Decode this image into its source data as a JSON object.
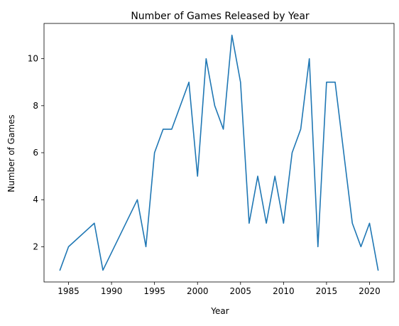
{
  "chart_data": {
    "type": "line",
    "title": "Number of Games Released by Year",
    "xlabel": "Year",
    "ylabel": "Number of Games",
    "x": [
      1984,
      1985,
      1988,
      1989,
      1993,
      1994,
      1995,
      1996,
      1997,
      1999,
      2000,
      2001,
      2002,
      2003,
      2004,
      2005,
      2006,
      2007,
      2008,
      2009,
      2010,
      2011,
      2012,
      2013,
      2014,
      2015,
      2016,
      2018,
      2019,
      2020,
      2021
    ],
    "series": [
      {
        "color": "#1f77b4",
        "values": [
          1,
          2,
          3,
          1,
          4,
          2,
          6,
          7,
          7,
          9,
          5,
          10,
          8,
          7,
          11,
          9,
          3,
          5,
          3,
          5,
          3,
          6,
          7,
          10,
          2,
          9,
          9,
          3,
          2,
          3,
          1
        ]
      }
    ],
    "xlim": [
      1982.15,
      2022.85
    ],
    "ylim": [
      0.5,
      11.5
    ],
    "xticks": [
      1985,
      1990,
      1995,
      2000,
      2005,
      2010,
      2015,
      2020
    ],
    "xtick_labels": [
      "1985",
      "1990",
      "1995",
      "2000",
      "2005",
      "2010",
      "2015",
      "2020"
    ],
    "yticks": [
      2,
      4,
      6,
      8,
      10
    ],
    "ytick_labels": [
      "2",
      "4",
      "6",
      "8",
      "10"
    ],
    "grid": false,
    "legend": "none"
  }
}
